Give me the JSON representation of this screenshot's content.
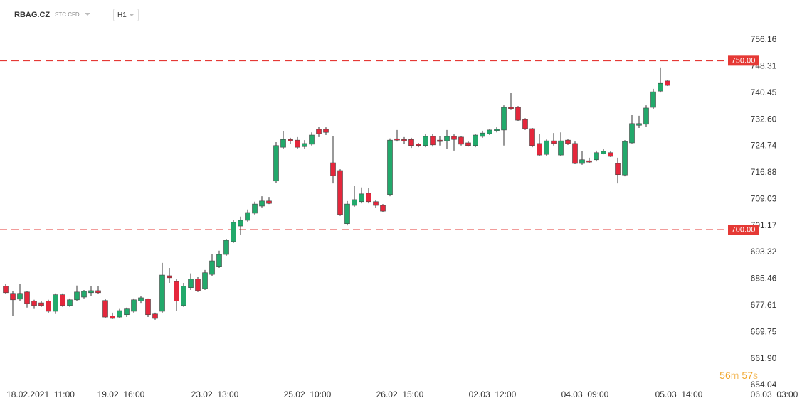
{
  "header": {
    "symbol": "RBAG.CZ",
    "instrument": "STC CFD",
    "timeframe": "H1"
  },
  "chart_data": {
    "type": "candlestick",
    "up_color": "#22a96b",
    "down_color": "#e5273c",
    "open": [
      683.3,
      681.2,
      679.5,
      681.6,
      678.9,
      678.4,
      678.9,
      675.9,
      680.8,
      677.6,
      679.3,
      680.1,
      681.4,
      682.0,
      679.1,
      674.5,
      674.2,
      674.9,
      675.9,
      678.9,
      679.5,
      675.1,
      675.9,
      686.4,
      684.7,
      677.6,
      682.9,
      685.4,
      682.6,
      686.8,
      689.2,
      692.7,
      696.5,
      701.1,
      702.8,
      704.9,
      707.0,
      708.5,
      714.4,
      724.4,
      726.7,
      726.5,
      724.6,
      725.3,
      729.7,
      729.7,
      719.8,
      717.5,
      701.8,
      707.2,
      708.3,
      710.8,
      708.3,
      707.2,
      710.4,
      726.9,
      726.7,
      726.7,
      725.3,
      724.9,
      727.6,
      726.5,
      726.3,
      727.6,
      727.4,
      725.7,
      724.9,
      727.6,
      728.4,
      729.3,
      729.5,
      736.2,
      736.2,
      732.6,
      729.9,
      725.5,
      722.3,
      726.3,
      722.1,
      726.5,
      725.5,
      719.6,
      720.4,
      720.7,
      722.5,
      722.8,
      719.6,
      716.2,
      725.7,
      730.9,
      731.2,
      736.2,
      741.0,
      744.0
    ],
    "high": [
      683.9,
      681.8,
      683.9,
      681.8,
      679.3,
      678.9,
      679.3,
      681.2,
      681.2,
      679.7,
      683.5,
      682.2,
      683.3,
      683.3,
      679.5,
      675.5,
      676.6,
      677.0,
      679.7,
      680.3,
      679.7,
      675.5,
      690.2,
      688.7,
      685.4,
      684.3,
      687.1,
      686.0,
      688.1,
      692.9,
      693.8,
      697.3,
      702.8,
      703.9,
      706.0,
      708.3,
      709.9,
      709.7,
      725.9,
      729.1,
      727.2,
      727.4,
      726.5,
      728.8,
      730.5,
      730.3,
      727.6,
      717.9,
      708.5,
      712.9,
      712.5,
      712.3,
      708.7,
      707.6,
      727.0,
      729.5,
      727.4,
      727.2,
      725.7,
      728.4,
      728.4,
      727.8,
      729.5,
      728.2,
      727.8,
      726.1,
      728.4,
      729.3,
      729.9,
      730.3,
      736.8,
      740.4,
      736.6,
      733.0,
      730.1,
      728.4,
      726.7,
      728.6,
      728.8,
      726.9,
      726.1,
      723.2,
      721.3,
      723.4,
      723.8,
      723.2,
      721.3,
      726.5,
      733.9,
      733.7,
      736.8,
      741.7,
      748.0,
      744.4
    ],
    "low": [
      681.0,
      674.5,
      678.9,
      677.0,
      676.6,
      677.2,
      675.3,
      675.1,
      677.2,
      677.2,
      678.9,
      679.7,
      680.5,
      681.0,
      674.0,
      673.6,
      673.8,
      674.2,
      675.5,
      678.4,
      674.2,
      673.4,
      675.5,
      684.3,
      675.9,
      677.2,
      682.2,
      681.6,
      682.2,
      686.4,
      688.7,
      692.3,
      696.1,
      698.6,
      702.4,
      704.5,
      706.6,
      707.6,
      713.9,
      724.0,
      725.3,
      723.8,
      724.0,
      724.9,
      727.4,
      728.0,
      713.7,
      704.1,
      701.3,
      706.8,
      707.8,
      707.8,
      706.4,
      705.3,
      709.9,
      726.1,
      725.3,
      724.2,
      724.4,
      724.4,
      724.6,
      724.9,
      723.8,
      723.4,
      724.9,
      724.6,
      724.4,
      727.2,
      728.0,
      728.8,
      724.9,
      735.4,
      732.2,
      729.5,
      724.4,
      721.7,
      721.9,
      724.9,
      721.7,
      725.1,
      719.4,
      719.2,
      719.8,
      720.2,
      722.3,
      721.5,
      713.7,
      715.8,
      725.5,
      730.1,
      730.5,
      735.6,
      740.6,
      742.5
    ],
    "close": [
      681.4,
      679.3,
      681.2,
      678.2,
      677.6,
      677.6,
      675.9,
      680.8,
      677.6,
      679.3,
      681.6,
      681.8,
      682.0,
      681.4,
      674.2,
      673.8,
      676.1,
      676.6,
      679.3,
      679.9,
      674.9,
      673.8,
      686.6,
      685.8,
      678.9,
      683.3,
      685.4,
      682.0,
      687.3,
      690.8,
      692.7,
      696.9,
      702.2,
      702.8,
      705.1,
      707.6,
      708.5,
      707.8,
      724.9,
      726.7,
      726.3,
      724.4,
      725.5,
      728.0,
      728.4,
      728.8,
      716.0,
      704.5,
      707.6,
      708.9,
      710.6,
      708.3,
      707.2,
      705.5,
      726.5,
      726.5,
      726.3,
      724.9,
      724.9,
      727.6,
      725.1,
      726.1,
      727.6,
      726.7,
      725.3,
      724.9,
      728.0,
      728.6,
      729.5,
      729.7,
      736.2,
      735.8,
      732.4,
      729.9,
      724.9,
      722.1,
      726.3,
      725.5,
      726.3,
      725.5,
      719.6,
      720.7,
      720.0,
      722.8,
      723.2,
      721.7,
      716.3,
      726.1,
      731.4,
      731.4,
      736.0,
      740.8,
      743.3,
      742.7
    ],
    "ylim": [
      652.78,
      767.93
    ],
    "yticks": [
      756.16,
      748.31,
      740.45,
      {
        "value": 732.6,
        "label": "732.60"
      },
      724.74,
      716.88,
      709.03,
      701.17,
      693.32,
      685.46,
      677.61,
      669.75,
      {
        "value": 661.9,
        "label": "661.90"
      },
      654.04
    ],
    "xlim": [
      -0.8,
      101.2
    ],
    "xticks": [
      {
        "value": 4.9,
        "label": "18.02.2021  11:00"
      },
      {
        "value": 16.2,
        "label": "19.02  16:00"
      },
      {
        "value": 29.4,
        "label": "23.02  13:00"
      },
      {
        "value": 42.4,
        "label": "25.02  10:00"
      },
      {
        "value": 55.4,
        "label": "26.02  15:00"
      },
      {
        "value": 68.4,
        "label": "02.03  12:00"
      },
      {
        "value": 81.4,
        "label": "04.03  09:00"
      },
      {
        "value": 94.6,
        "label": "05.03  14:00"
      },
      {
        "value": 108,
        "label": "06.03  03:00"
      }
    ],
    "hlines": [
      {
        "value": 750,
        "label": "750.00",
        "color": "#e53935"
      },
      {
        "value": 700,
        "label": "700.00",
        "color": "#e53935"
      }
    ],
    "countdown": {
      "minutes": 56,
      "minute_unit": "m",
      "seconds": 57,
      "second_unit": "s",
      "color": "#f0a52a"
    }
  }
}
